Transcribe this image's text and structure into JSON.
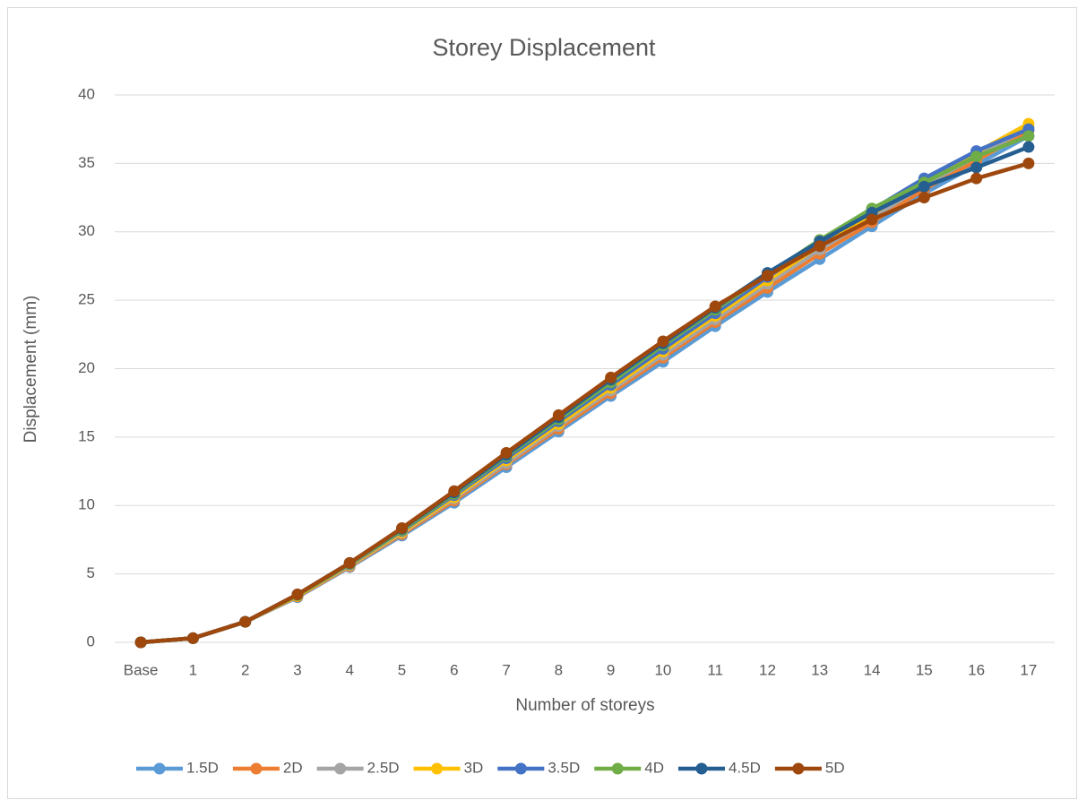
{
  "chart_data": {
    "type": "line",
    "title": "Storey Displacement",
    "x_label": "Number of storeys",
    "y_label": "Displacement (mm)",
    "categories": [
      "Base",
      "1",
      "2",
      "3",
      "4",
      "5",
      "6",
      "7",
      "8",
      "9",
      "10",
      "11",
      "12",
      "13",
      "14",
      "15",
      "16",
      "17"
    ],
    "ylim": [
      0,
      40
    ],
    "yticks": [
      0,
      5,
      10,
      15,
      20,
      25,
      30,
      35,
      40
    ],
    "grid": true,
    "legend": "bottom",
    "series": [
      {
        "name": "1.5D",
        "color": "#5b9bd5",
        "values": [
          0,
          0.3,
          1.5,
          3.3,
          5.5,
          7.8,
          10.2,
          12.8,
          15.4,
          18.0,
          20.5,
          23.1,
          25.6,
          28.0,
          30.4,
          32.8,
          34.9,
          37.0
        ]
      },
      {
        "name": "2D",
        "color": "#ed7d31",
        "values": [
          0,
          0.3,
          1.5,
          3.35,
          5.55,
          7.9,
          10.35,
          13.0,
          15.6,
          18.2,
          20.8,
          23.4,
          25.9,
          28.4,
          30.7,
          33.1,
          35.2,
          37.4
        ]
      },
      {
        "name": "2.5D",
        "color": "#a5a5a5",
        "values": [
          0,
          0.3,
          1.5,
          3.4,
          5.6,
          8.0,
          10.5,
          13.1,
          15.8,
          18.4,
          21.0,
          23.6,
          26.2,
          28.7,
          31.0,
          33.4,
          35.5,
          37.6
        ]
      },
      {
        "name": "3D",
        "color": "#ffc000",
        "values": [
          0,
          0.3,
          1.5,
          3.4,
          5.65,
          8.05,
          10.6,
          13.3,
          15.95,
          18.6,
          21.25,
          23.85,
          26.45,
          29.0,
          31.3,
          33.7,
          35.8,
          37.9
        ]
      },
      {
        "name": "3.5D",
        "color": "#4472c4",
        "values": [
          0,
          0.3,
          1.5,
          3.45,
          5.7,
          8.15,
          10.75,
          13.45,
          16.15,
          18.8,
          21.45,
          24.05,
          26.7,
          29.2,
          31.6,
          33.9,
          35.9,
          37.5
        ]
      },
      {
        "name": "4D",
        "color": "#70ad47",
        "values": [
          0,
          0.3,
          1.5,
          3.45,
          5.75,
          8.2,
          10.85,
          13.6,
          16.3,
          19.0,
          21.7,
          24.3,
          26.9,
          29.4,
          31.7,
          33.6,
          35.5,
          37.0
        ]
      },
      {
        "name": "4.5D",
        "color": "#255e91",
        "values": [
          0,
          0.3,
          1.5,
          3.5,
          5.8,
          8.3,
          10.95,
          13.7,
          16.45,
          19.2,
          21.85,
          24.45,
          27.0,
          29.3,
          31.4,
          33.3,
          34.7,
          36.2
        ]
      },
      {
        "name": "5D",
        "color": "#9e480e",
        "values": [
          0,
          0.3,
          1.5,
          3.5,
          5.8,
          8.35,
          11.05,
          13.85,
          16.6,
          19.35,
          22.0,
          24.55,
          26.8,
          28.95,
          30.9,
          32.5,
          33.9,
          35.0
        ]
      }
    ]
  }
}
